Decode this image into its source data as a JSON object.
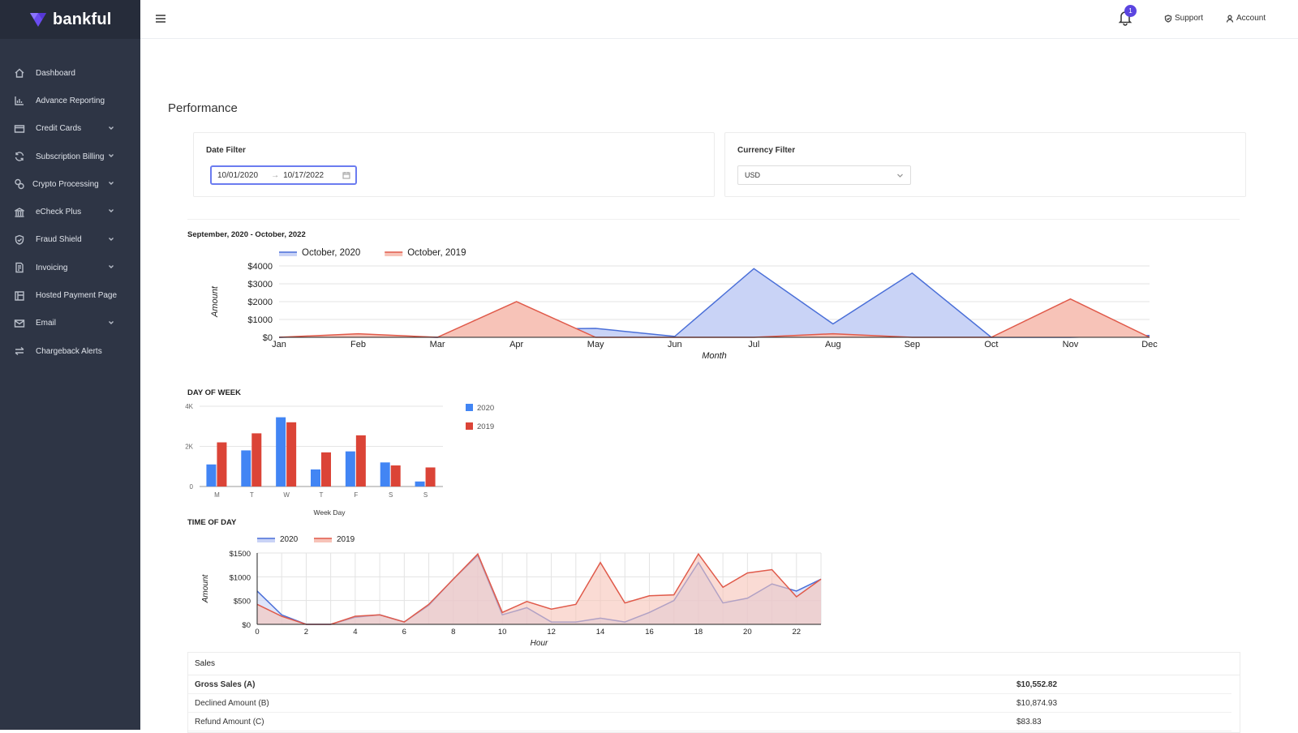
{
  "brand": {
    "name": "bankful",
    "accent": "#6a4cf0"
  },
  "sidebar": {
    "items": [
      {
        "label": "Dashboard",
        "icon": "home-icon",
        "expandable": false
      },
      {
        "label": "Advance Reporting",
        "icon": "bar-chart-icon",
        "expandable": false
      },
      {
        "label": "Credit Cards",
        "icon": "credit-card-icon",
        "expandable": true
      },
      {
        "label": "Subscription Billing",
        "icon": "sync-icon",
        "expandable": true
      },
      {
        "label": "Crypto Processing",
        "icon": "coins-icon",
        "expandable": true
      },
      {
        "label": "eCheck Plus",
        "icon": "bank-icon",
        "expandable": true
      },
      {
        "label": "Fraud Shield",
        "icon": "shield-icon",
        "expandable": true
      },
      {
        "label": "Invoicing",
        "icon": "document-icon",
        "expandable": true
      },
      {
        "label": "Hosted Payment Page",
        "icon": "layout-icon",
        "expandable": false
      },
      {
        "label": "Email",
        "icon": "mail-icon",
        "expandable": true
      },
      {
        "label": "Chargeback Alerts",
        "icon": "swap-icon",
        "expandable": false
      }
    ]
  },
  "header": {
    "notifications_count": "1",
    "support_label": "Support",
    "account_label": "Account"
  },
  "page": {
    "title": "Performance"
  },
  "filters": {
    "date_label": "Date Filter",
    "date_start": "10/01/2020",
    "date_arrow": "→",
    "date_end": "10/17/2022",
    "currency_label": "Currency Filter",
    "currency_value": "USD"
  },
  "chart_data": [
    {
      "type": "area",
      "title": "September, 2020 - October, 2022",
      "xlabel": "Month",
      "ylabel": "Amount",
      "categories": [
        "Jan",
        "Feb",
        "Mar",
        "Apr",
        "May",
        "Jun",
        "Jul",
        "Aug",
        "Sep",
        "Oct",
        "Nov",
        "Dec"
      ],
      "yticks": [
        "$0",
        "$1000",
        "$2000",
        "$3000",
        "$4000"
      ],
      "ylim": [
        0,
        4000
      ],
      "legend_position": "top-left",
      "grid": true,
      "series": [
        {
          "name": "October, 2020",
          "color": "#4a6fd8",
          "fill": "#c9d3f6",
          "values": [
            0,
            100,
            0,
            450,
            500,
            50,
            3850,
            750,
            3600,
            0,
            0,
            100
          ]
        },
        {
          "name": "October, 2019",
          "color": "#e05a4a",
          "fill": "#f7c3b8",
          "values": [
            0,
            200,
            0,
            2000,
            0,
            0,
            0,
            200,
            0,
            0,
            2150,
            0
          ]
        }
      ]
    },
    {
      "type": "bar",
      "title": "DAY OF WEEK",
      "xlabel": "Week Day",
      "ylabel": "",
      "categories": [
        "M",
        "T",
        "W",
        "T",
        "F",
        "S",
        "S"
      ],
      "yticks": [
        "0",
        "2K",
        "4K"
      ],
      "ylim": [
        0,
        4000
      ],
      "legend_position": "right",
      "grid": true,
      "series": [
        {
          "name": "2020",
          "color": "#4285f4",
          "values": [
            1100,
            1800,
            3450,
            850,
            1750,
            1200,
            250
          ]
        },
        {
          "name": "2019",
          "color": "#db4437",
          "values": [
            2200,
            2650,
            3200,
            1700,
            2550,
            1050,
            950
          ]
        }
      ]
    },
    {
      "type": "area",
      "title": "TIME OF DAY",
      "xlabel": "Hour",
      "ylabel": "Amount",
      "x": [
        0,
        1,
        2,
        3,
        4,
        5,
        6,
        7,
        8,
        9,
        10,
        11,
        12,
        13,
        14,
        15,
        16,
        17,
        18,
        19,
        20,
        21,
        22,
        23
      ],
      "xticks": [
        "0",
        "2",
        "4",
        "6",
        "8",
        "10",
        "12",
        "14",
        "16",
        "18",
        "20",
        "22"
      ],
      "yticks": [
        "$0",
        "$500",
        "$1000",
        "$1500"
      ],
      "ylim": [
        0,
        1500
      ],
      "legend_position": "top-left",
      "grid": true,
      "series": [
        {
          "name": "2020",
          "color": "#4a6fd8",
          "fill": "#c9d3f6",
          "values": [
            700,
            200,
            0,
            0,
            150,
            200,
            50,
            400,
            950,
            1450,
            200,
            350,
            50,
            50,
            130,
            50,
            250,
            500,
            1300,
            450,
            550,
            850,
            700,
            950
          ]
        },
        {
          "name": "2019",
          "color": "#e05a4a",
          "fill": "#f7c3b8",
          "values": [
            420,
            170,
            0,
            0,
            170,
            200,
            50,
            420,
            950,
            1480,
            250,
            480,
            320,
            420,
            1300,
            450,
            600,
            620,
            1480,
            780,
            1080,
            1150,
            580,
            950
          ]
        }
      ]
    }
  ],
  "sales": {
    "title": "Sales",
    "rows": [
      {
        "label": "Gross Sales (A)",
        "value": "$10,552.82",
        "bold": true
      },
      {
        "label": "Declined Amount (B)",
        "value": "$10,874.93",
        "bold": false
      },
      {
        "label": "Refund Amount (C)",
        "value": "$83.83",
        "bold": false
      }
    ]
  }
}
